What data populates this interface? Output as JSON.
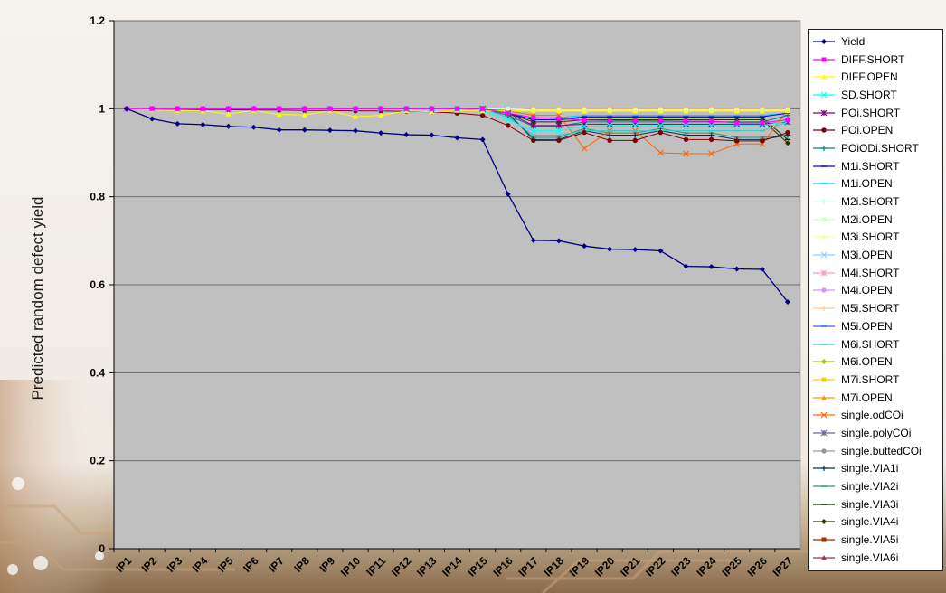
{
  "chart_data": {
    "type": "line",
    "title": "",
    "xlabel": "",
    "ylabel": "Predicted random defect yield",
    "ylim": [
      0,
      1.2
    ],
    "yticks": [
      "0",
      "0.2",
      "0.4",
      "0.6",
      "0.8",
      "1",
      "1.2"
    ],
    "grid": "horizontal",
    "legend_position": "right",
    "categories": [
      "IP1",
      "IP2",
      "IP3",
      "IP4",
      "IP5",
      "IP6",
      "IP7",
      "IP8",
      "IP9",
      "IP10",
      "IP11",
      "IP12",
      "IP13",
      "IP14",
      "IP15",
      "IP16",
      "IP17",
      "IP18",
      "IP19",
      "IP20",
      "IP21",
      "IP22",
      "IP23",
      "IP24",
      "IP25",
      "IP26",
      "IP27"
    ],
    "series": [
      {
        "name": "Yield",
        "color": "#000080",
        "marker": "diamond",
        "values": [
          1,
          0.977,
          0.966,
          0.964,
          0.96,
          0.958,
          0.952,
          0.952,
          0.951,
          0.95,
          0.945,
          0.941,
          0.94,
          0.934,
          0.93,
          0.806,
          0.701,
          0.7,
          0.688,
          0.681,
          0.68,
          0.677,
          0.642,
          0.641,
          0.636,
          0.635,
          0.561
        ]
      },
      {
        "name": "DIFF.SHORT",
        "color": "#ff00ff",
        "marker": "square",
        "values": [
          1,
          1,
          1,
          1,
          1,
          1,
          1,
          1,
          1,
          1,
          1,
          1,
          1,
          1,
          1,
          0.99,
          0.98,
          0.978,
          0.974,
          0.973,
          0.973,
          0.973,
          0.972,
          0.972,
          0.968,
          0.968,
          0.975
        ]
      },
      {
        "name": "DIFF.OPEN",
        "color": "#ffff00",
        "marker": "triangle",
        "values": [
          1,
          0.997,
          0.996,
          0.995,
          0.988,
          0.996,
          0.987,
          0.986,
          0.995,
          0.982,
          0.985,
          0.995,
          0.993,
          0.996,
          0.995,
          0.995,
          0.995,
          0.995,
          0.995,
          0.995,
          0.995,
          0.995,
          0.995,
          0.995,
          0.995,
          0.995,
          0.995
        ]
      },
      {
        "name": "SD.SHORT",
        "color": "#00ffff",
        "marker": "x",
        "values": [
          1,
          1,
          1,
          1,
          1,
          1,
          1,
          1,
          1,
          1,
          1,
          1,
          1,
          1,
          0.995,
          0.975,
          0.95,
          0.95,
          0.96,
          0.962,
          0.962,
          0.962,
          0.962,
          0.962,
          0.962,
          0.962,
          0.972
        ]
      },
      {
        "name": "POi.SHORT",
        "color": "#800080",
        "marker": "star",
        "values": [
          1,
          1,
          1,
          1,
          1,
          1,
          1,
          1,
          1,
          1,
          1,
          1,
          1,
          1,
          1,
          0.99,
          0.962,
          0.962,
          0.965,
          0.965,
          0.965,
          0.965,
          0.965,
          0.965,
          0.965,
          0.965,
          0.97
        ]
      },
      {
        "name": "POi.OPEN",
        "color": "#800000",
        "marker": "circle",
        "values": [
          1,
          0.999,
          0.999,
          0.998,
          0.998,
          0.997,
          0.997,
          0.996,
          0.996,
          0.995,
          0.995,
          0.994,
          0.993,
          0.99,
          0.985,
          0.962,
          0.928,
          0.928,
          0.946,
          0.928,
          0.928,
          0.946,
          0.93,
          0.93,
          0.927,
          0.927,
          0.946
        ]
      },
      {
        "name": "POiODi.SHORT",
        "color": "#008080",
        "marker": "plus",
        "values": [
          1,
          1,
          1,
          1,
          1,
          1,
          1,
          1,
          1,
          1,
          1,
          1,
          1,
          1,
          1,
          0.985,
          0.96,
          0.96,
          0.97,
          0.97,
          0.97,
          0.97,
          0.97,
          0.97,
          0.97,
          0.97,
          0.985
        ]
      },
      {
        "name": "M1i.SHORT",
        "color": "#0000ff",
        "marker": "dash",
        "values": [
          1,
          1,
          1,
          1,
          1,
          1,
          1,
          1,
          1,
          1,
          1,
          1,
          1,
          1,
          1,
          0.99,
          0.975,
          0.975,
          0.982,
          0.982,
          0.982,
          0.982,
          0.982,
          0.982,
          0.982,
          0.982,
          0.99
        ]
      },
      {
        "name": "M1i.OPEN",
        "color": "#00ccff",
        "marker": "dash",
        "values": [
          1,
          1,
          1,
          1,
          1,
          1,
          1,
          1,
          1,
          1,
          1,
          1,
          1,
          1,
          1,
          0.99,
          0.98,
          0.98,
          0.985,
          0.985,
          0.985,
          0.985,
          0.985,
          0.985,
          0.985,
          0.985,
          0.99
        ]
      },
      {
        "name": "M2i.SHORT",
        "color": "#ccffff",
        "marker": "diamond",
        "values": [
          1,
          1,
          1,
          1,
          1,
          1,
          1,
          1,
          1,
          1,
          1,
          1,
          1,
          1,
          1,
          1,
          0.995,
          0.995,
          0.995,
          0.995,
          0.995,
          0.995,
          0.995,
          0.995,
          0.995,
          0.995,
          0.995
        ]
      },
      {
        "name": "M2i.OPEN",
        "color": "#ccffcc",
        "marker": "square",
        "values": [
          1,
          1,
          1,
          1,
          1,
          1,
          1,
          1,
          1,
          1,
          1,
          1,
          1,
          1,
          1,
          1,
          0.996,
          0.996,
          0.996,
          0.996,
          0.996,
          0.996,
          0.996,
          0.996,
          0.996,
          0.996,
          0.996
        ]
      },
      {
        "name": "M3i.SHORT",
        "color": "#ffff99",
        "marker": "triangle",
        "values": [
          1,
          1,
          1,
          1,
          1,
          1,
          1,
          1,
          1,
          1,
          1,
          1,
          1,
          1,
          1,
          1,
          0.997,
          0.997,
          0.997,
          0.997,
          0.997,
          0.997,
          0.997,
          0.997,
          0.997,
          0.997,
          0.997
        ]
      },
      {
        "name": "M3i.OPEN",
        "color": "#99ccff",
        "marker": "x",
        "values": [
          1,
          1,
          1,
          1,
          1,
          1,
          1,
          1,
          1,
          1,
          1,
          1,
          1,
          1,
          1,
          1,
          0.997,
          0.997,
          0.997,
          0.997,
          0.997,
          0.997,
          0.997,
          0.997,
          0.997,
          0.997,
          0.997
        ]
      },
      {
        "name": "M4i.SHORT",
        "color": "#ff99cc",
        "marker": "star",
        "values": [
          1,
          1,
          1,
          1,
          1,
          1,
          1,
          1,
          1,
          1,
          1,
          1,
          1,
          1,
          1,
          1,
          0.998,
          0.998,
          0.998,
          0.998,
          0.998,
          0.998,
          0.998,
          0.998,
          0.998,
          0.998,
          0.998
        ]
      },
      {
        "name": "M4i.OPEN",
        "color": "#cc99ff",
        "marker": "circle",
        "values": [
          1,
          1,
          1,
          1,
          1,
          1,
          1,
          1,
          1,
          1,
          1,
          1,
          1,
          1,
          1,
          1,
          0.998,
          0.998,
          0.998,
          0.998,
          0.998,
          0.998,
          0.998,
          0.998,
          0.998,
          0.998,
          0.998
        ]
      },
      {
        "name": "M5i.SHORT",
        "color": "#ffcc99",
        "marker": "plus",
        "values": [
          1,
          1,
          1,
          1,
          1,
          1,
          1,
          1,
          1,
          1,
          1,
          1,
          1,
          1,
          1,
          1,
          0.999,
          0.999,
          0.999,
          0.999,
          0.999,
          0.999,
          0.999,
          0.999,
          0.999,
          0.999,
          0.999
        ]
      },
      {
        "name": "M5i.OPEN",
        "color": "#3366ff",
        "marker": "dash",
        "values": [
          1,
          1,
          1,
          1,
          1,
          1,
          1,
          1,
          1,
          1,
          1,
          1,
          1,
          1,
          1,
          1,
          0.999,
          0.999,
          0.999,
          0.999,
          0.999,
          0.999,
          0.999,
          0.999,
          0.999,
          0.999,
          0.999
        ]
      },
      {
        "name": "M6i.SHORT",
        "color": "#33cccc",
        "marker": "dash",
        "values": [
          1,
          1,
          1,
          1,
          1,
          1,
          1,
          1,
          1,
          1,
          1,
          1,
          1,
          1,
          1,
          0.98,
          0.94,
          0.94,
          0.95,
          0.95,
          0.95,
          0.95,
          0.95,
          0.95,
          0.95,
          0.95,
          0.97
        ]
      },
      {
        "name": "M6i.OPEN",
        "color": "#99cc00",
        "marker": "diamond",
        "values": [
          1,
          1,
          1,
          1,
          1,
          1,
          1,
          1,
          1,
          1,
          1,
          1,
          1,
          1,
          1,
          1,
          0.999,
          0.999,
          0.999,
          0.999,
          0.999,
          0.999,
          0.999,
          0.999,
          0.999,
          0.999,
          0.999
        ]
      },
      {
        "name": "M7i.SHORT",
        "color": "#ffcc00",
        "marker": "square",
        "values": [
          1,
          1,
          1,
          1,
          1,
          1,
          1,
          1,
          1,
          1,
          1,
          1,
          1,
          1,
          1,
          1,
          1,
          1,
          1,
          1,
          1,
          1,
          1,
          1,
          1,
          1,
          1
        ]
      },
      {
        "name": "M7i.OPEN",
        "color": "#ff9900",
        "marker": "triangle",
        "values": [
          1,
          1,
          1,
          1,
          1,
          1,
          1,
          1,
          1,
          1,
          1,
          1,
          1,
          1,
          1,
          1,
          1,
          1,
          1,
          1,
          1,
          1,
          1,
          1,
          1,
          1,
          1
        ]
      },
      {
        "name": "single.odCOi",
        "color": "#ff6600",
        "marker": "x",
        "values": [
          1,
          1,
          1,
          1,
          1,
          1,
          1,
          1,
          1,
          1,
          1,
          1,
          1,
          1,
          1,
          0.995,
          0.985,
          0.985,
          0.91,
          0.95,
          0.95,
          0.9,
          0.898,
          0.898,
          0.92,
          0.92,
          0.998
        ]
      },
      {
        "name": "single.polyCOi",
        "color": "#666699",
        "marker": "star",
        "values": [
          1,
          1,
          1,
          1,
          1,
          1,
          1,
          1,
          1,
          1,
          1,
          1,
          1,
          1,
          1,
          1,
          0.998,
          0.998,
          0.998,
          0.998,
          0.998,
          0.998,
          0.998,
          0.998,
          0.998,
          0.998,
          0.998
        ]
      },
      {
        "name": "single.buttedCOi",
        "color": "#969696",
        "marker": "circle",
        "values": [
          1,
          1,
          1,
          1,
          1,
          1,
          1,
          1,
          1,
          1,
          1,
          1,
          1,
          1,
          1,
          1,
          0.999,
          0.999,
          0.999,
          0.999,
          0.999,
          0.999,
          0.999,
          0.999,
          0.999,
          0.999,
          0.999
        ]
      },
      {
        "name": "single.VIA1i",
        "color": "#003366",
        "marker": "plus",
        "values": [
          1,
          1,
          1,
          1,
          1,
          1,
          1,
          1,
          1,
          1,
          1,
          1,
          1,
          1,
          1,
          0.99,
          0.93,
          0.93,
          0.95,
          0.94,
          0.94,
          0.95,
          0.94,
          0.94,
          0.93,
          0.93,
          0.94
        ]
      },
      {
        "name": "single.VIA2i",
        "color": "#339966",
        "marker": "dash",
        "values": [
          1,
          1,
          1,
          1,
          1,
          1,
          1,
          1,
          1,
          1,
          1,
          1,
          1,
          1,
          1,
          0.985,
          0.935,
          0.935,
          0.955,
          0.945,
          0.945,
          0.955,
          0.945,
          0.945,
          0.935,
          0.935,
          0.94
        ]
      },
      {
        "name": "single.VIA3i",
        "color": "#003300",
        "marker": "dash",
        "values": [
          1,
          1,
          1,
          1,
          1,
          1,
          1,
          1,
          1,
          1,
          1,
          1,
          1,
          1,
          1,
          0.99,
          0.975,
          0.975,
          0.98,
          0.98,
          0.98,
          0.98,
          0.98,
          0.98,
          0.98,
          0.98,
          0.93
        ]
      },
      {
        "name": "single.VIA4i",
        "color": "#333300",
        "marker": "diamond",
        "values": [
          1,
          1,
          1,
          1,
          1,
          1,
          1,
          1,
          1,
          1,
          1,
          1,
          1,
          1,
          1,
          0.99,
          0.97,
          0.97,
          0.975,
          0.975,
          0.975,
          0.975,
          0.975,
          0.975,
          0.975,
          0.975,
          0.922
        ]
      },
      {
        "name": "single.VIA5i",
        "color": "#993300",
        "marker": "square",
        "values": [
          1,
          1,
          1,
          1,
          1,
          1,
          1,
          1,
          1,
          1,
          1,
          1,
          1,
          1,
          1,
          1,
          0.998,
          0.998,
          0.998,
          0.998,
          0.998,
          0.998,
          0.998,
          0.998,
          0.998,
          0.998,
          0.998
        ]
      },
      {
        "name": "single.VIA6i",
        "color": "#993366",
        "marker": "triangle",
        "values": [
          1,
          1,
          1,
          1,
          1,
          1,
          1,
          1,
          1,
          1,
          1,
          1,
          1,
          1,
          1,
          1,
          0.999,
          0.999,
          0.999,
          0.999,
          0.999,
          0.999,
          0.999,
          0.999,
          0.999,
          0.999,
          0.999
        ]
      }
    ]
  }
}
